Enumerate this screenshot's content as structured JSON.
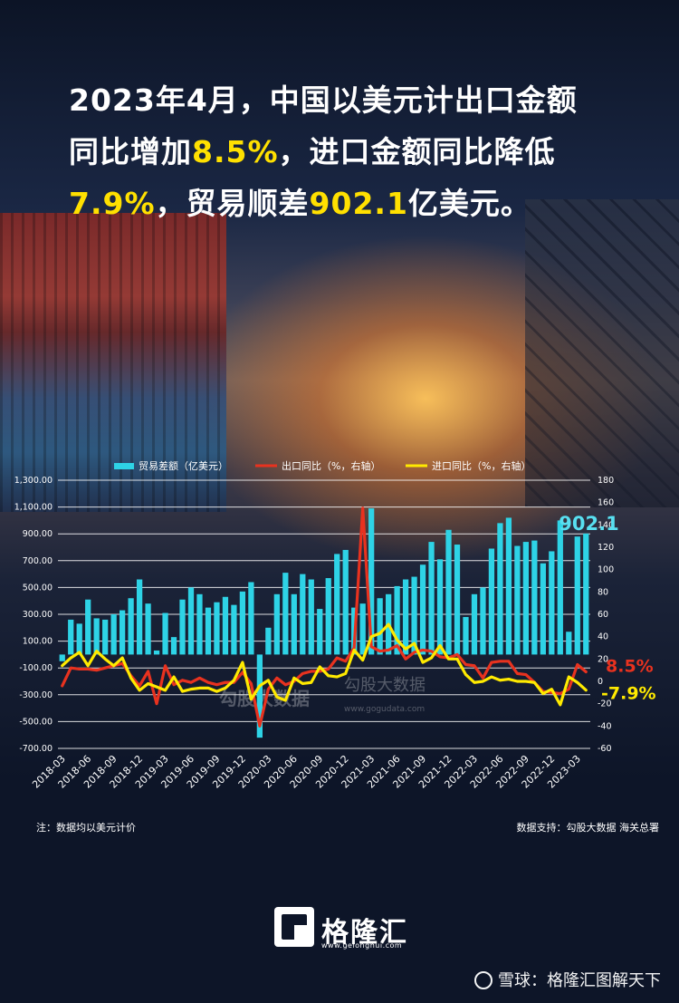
{
  "headline": {
    "line1": "2023年4月，中国以美元计出口金额",
    "line2_a": "同比增加",
    "line2_b": "8.5%",
    "line2_c": "，进口金额同比降低",
    "line3_a": "7.9%",
    "line3_b": "，贸易顺差",
    "line3_c": "902.1",
    "line3_d": "亿美元。"
  },
  "colors": {
    "headline_highlight": "#ffe000",
    "bar": "#2ed3e6",
    "export_line": "#e8321f",
    "import_line": "#ffea00",
    "bar_label": "#58dff0"
  },
  "chart_data": {
    "type": "bar+line",
    "x": [
      "2018-03",
      "2018-04",
      "2018-05",
      "2018-06",
      "2018-07",
      "2018-08",
      "2018-09",
      "2018-10",
      "2018-11",
      "2018-12",
      "2019-01",
      "2019-02",
      "2019-03",
      "2019-04",
      "2019-05",
      "2019-06",
      "2019-07",
      "2019-08",
      "2019-09",
      "2019-10",
      "2019-11",
      "2019-12",
      "2020-01",
      "2020-02",
      "2020-03",
      "2020-04",
      "2020-05",
      "2020-06",
      "2020-07",
      "2020-08",
      "2020-09",
      "2020-10",
      "2020-11",
      "2020-12",
      "2021-01",
      "2021-02",
      "2021-03",
      "2021-04",
      "2021-05",
      "2021-06",
      "2021-07",
      "2021-08",
      "2021-09",
      "2021-10",
      "2021-11",
      "2021-12",
      "2022-01",
      "2022-02",
      "2022-03",
      "2022-04",
      "2022-05",
      "2022-06",
      "2022-07",
      "2022-08",
      "2022-09",
      "2022-10",
      "2022-11",
      "2022-12",
      "2023-01",
      "2023-02",
      "2023-03",
      "2023-04"
    ],
    "tick_labels": [
      "2018-03",
      "2018-06",
      "2018-09",
      "2018-12",
      "2019-03",
      "2019-06",
      "2019-09",
      "2019-12",
      "2020-03",
      "2020-06",
      "2020-09",
      "2020-12",
      "2021-03",
      "2021-06",
      "2021-09",
      "2021-12",
      "2022-03",
      "2022-06",
      "2022-09",
      "2022-12",
      "2023-03"
    ],
    "legend": [
      "贸易差额（亿美元）",
      "出口同比（%，右轴）",
      "进口同比（%，右轴）"
    ],
    "legend_position": "top",
    "grid": true,
    "y_left": {
      "ylim": [
        -700,
        1300
      ],
      "ticks": [
        "1,300.00",
        "1,100.00",
        "900.00",
        "700.00",
        "500.00",
        "300.00",
        "100.00",
        "-100.00",
        "-300.00",
        "-500.00",
        "-700.00"
      ]
    },
    "y_right": {
      "ylim": [
        -60,
        180
      ],
      "ticks": [
        "180",
        "160",
        "140",
        "120",
        "100",
        "80",
        "60",
        "40",
        "20",
        "0",
        "-20",
        "-40",
        "-60"
      ]
    },
    "series": [
      {
        "name": "贸易差额（亿美元）",
        "type": "bar",
        "axis": "left",
        "values": [
          -50,
          260,
          230,
          410,
          270,
          260,
          300,
          330,
          420,
          560,
          380,
          30,
          310,
          130,
          410,
          500,
          450,
          350,
          390,
          430,
          370,
          470,
          540,
          -620,
          200,
          450,
          610,
          450,
          600,
          560,
          340,
          570,
          750,
          780,
          350,
          380,
          1090,
          420,
          450,
          510,
          560,
          580,
          670,
          840,
          710,
          930,
          820,
          280,
          450,
          500,
          790,
          980,
          1020,
          810,
          840,
          850,
          680,
          770,
          1000,
          170,
          880,
          902
        ]
      },
      {
        "name": "出口同比（%，右轴）",
        "type": "line",
        "axis": "right",
        "values": [
          -4,
          12,
          11,
          11,
          10,
          12,
          14,
          16,
          5,
          -4,
          9,
          -20,
          14,
          -3,
          1,
          -1,
          3,
          -1,
          -3,
          -1,
          -1,
          8,
          -2,
          -40,
          -7,
          3,
          -3,
          0,
          7,
          9,
          9,
          11,
          21,
          18,
          30,
          155,
          31,
          27,
          28,
          32,
          20,
          26,
          28,
          27,
          22,
          21,
          24,
          15,
          14,
          3,
          17,
          18,
          18,
          7,
          6,
          -1,
          -9,
          -10,
          -11,
          -7,
          15,
          8.5
        ]
      },
      {
        "name": "进口同比（%，右轴）",
        "type": "line",
        "axis": "right",
        "values": [
          14,
          21,
          26,
          14,
          27,
          20,
          14,
          21,
          3,
          -8,
          -2,
          -5,
          -8,
          4,
          -9,
          -7,
          -6,
          -6,
          -9,
          -6,
          1,
          17,
          -16,
          -4,
          1,
          -14,
          -17,
          3,
          -2,
          -1,
          13,
          5,
          4,
          7,
          28,
          19,
          40,
          43,
          51,
          37,
          29,
          34,
          17,
          21,
          32,
          20,
          20,
          6,
          -1,
          0,
          4,
          1,
          2,
          0,
          0,
          -1,
          -11,
          -7,
          -21,
          4,
          -1,
          -7.9
        ]
      }
    ],
    "annotations": [
      {
        "text": "902.1",
        "series": "贸易差额（亿美元）",
        "point": "2023-04"
      },
      {
        "text": "8.5%",
        "series": "出口同比（%，右轴）",
        "point": "2023-04"
      },
      {
        "text": "-7.9%",
        "series": "进口同比（%，右轴）",
        "point": "2023-04"
      }
    ]
  },
  "watermark": {
    "site_name": "勾股大数据",
    "url": "www.gogudata.com"
  },
  "notes": {
    "left": "注：数据均以美元计价",
    "right": "数据支持：勾股大数据 海关总署"
  },
  "logo": {
    "name": "格隆汇",
    "url": "www.gelonghui.com"
  },
  "footer_watermark": "雪球：格隆汇图解天下"
}
